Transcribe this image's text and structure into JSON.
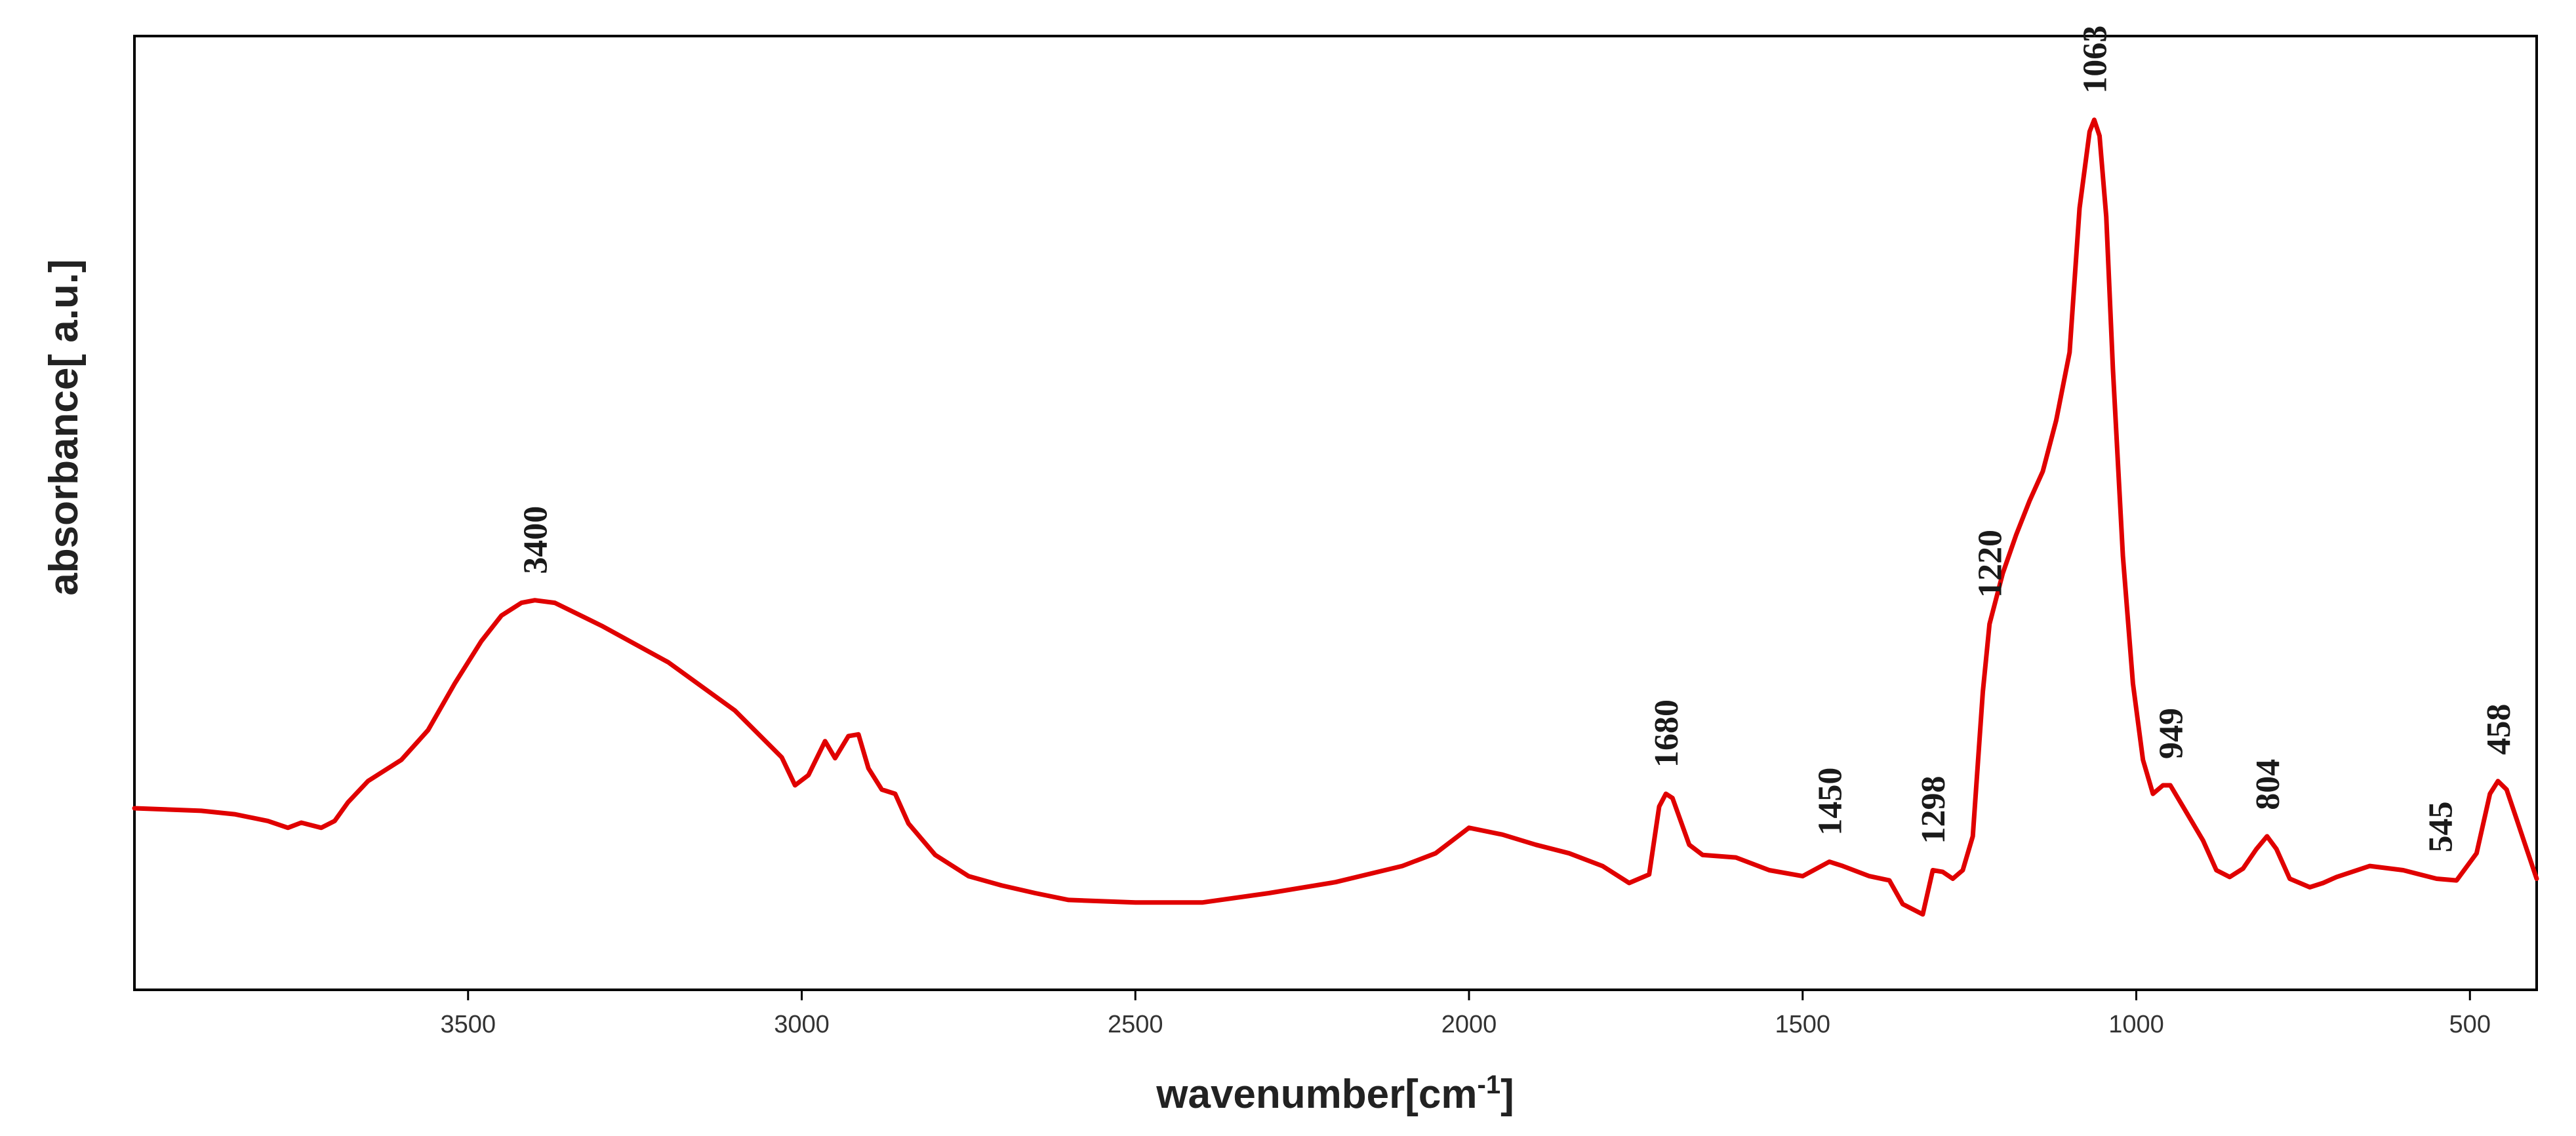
{
  "chart_data": {
    "type": "line",
    "xlabel": "wavenumber[cm",
    "xlabel_sup": "-1",
    "xlabel_end": "]",
    "ylabel": "absorbance[ a.u.]",
    "xlim": [
      4000,
      400
    ],
    "ylim": [
      0,
      1
    ],
    "x_reversed": true,
    "x_ticks": [
      3500,
      3000,
      2500,
      2000,
      1500,
      1000,
      500
    ],
    "y_ticks_shown": false,
    "grid": false,
    "line_color": "#e00000",
    "series": [
      {
        "points": [
          [
            4000,
            0.183
          ],
          [
            3900,
            0.18
          ],
          [
            3850,
            0.176
          ],
          [
            3800,
            0.168
          ],
          [
            3770,
            0.16
          ],
          [
            3750,
            0.166
          ],
          [
            3720,
            0.16
          ],
          [
            3700,
            0.168
          ],
          [
            3680,
            0.19
          ],
          [
            3650,
            0.215
          ],
          [
            3600,
            0.24
          ],
          [
            3560,
            0.275
          ],
          [
            3520,
            0.33
          ],
          [
            3480,
            0.38
          ],
          [
            3450,
            0.41
          ],
          [
            3420,
            0.425
          ],
          [
            3400,
            0.428
          ],
          [
            3370,
            0.425
          ],
          [
            3300,
            0.398
          ],
          [
            3200,
            0.355
          ],
          [
            3100,
            0.298
          ],
          [
            3030,
            0.243
          ],
          [
            3010,
            0.21
          ],
          [
            2990,
            0.222
          ],
          [
            2965,
            0.262
          ],
          [
            2950,
            0.242
          ],
          [
            2930,
            0.268
          ],
          [
            2915,
            0.27
          ],
          [
            2900,
            0.23
          ],
          [
            2880,
            0.205
          ],
          [
            2860,
            0.2
          ],
          [
            2840,
            0.165
          ],
          [
            2800,
            0.128
          ],
          [
            2750,
            0.103
          ],
          [
            2700,
            0.092
          ],
          [
            2650,
            0.083
          ],
          [
            2600,
            0.075
          ],
          [
            2500,
            0.072
          ],
          [
            2400,
            0.072
          ],
          [
            2300,
            0.083
          ],
          [
            2200,
            0.096
          ],
          [
            2100,
            0.115
          ],
          [
            2050,
            0.13
          ],
          [
            2000,
            0.16
          ],
          [
            1950,
            0.152
          ],
          [
            1900,
            0.14
          ],
          [
            1850,
            0.13
          ],
          [
            1800,
            0.115
          ],
          [
            1760,
            0.095
          ],
          [
            1730,
            0.105
          ],
          [
            1715,
            0.185
          ],
          [
            1705,
            0.2
          ],
          [
            1695,
            0.195
          ],
          [
            1670,
            0.14
          ],
          [
            1650,
            0.128
          ],
          [
            1600,
            0.125
          ],
          [
            1550,
            0.11
          ],
          [
            1500,
            0.103
          ],
          [
            1460,
            0.12
          ],
          [
            1440,
            0.115
          ],
          [
            1400,
            0.103
          ],
          [
            1370,
            0.098
          ],
          [
            1350,
            0.07
          ],
          [
            1320,
            0.058
          ],
          [
            1305,
            0.11
          ],
          [
            1290,
            0.108
          ],
          [
            1275,
            0.1
          ],
          [
            1260,
            0.11
          ],
          [
            1245,
            0.15
          ],
          [
            1230,
            0.32
          ],
          [
            1220,
            0.4
          ],
          [
            1200,
            0.46
          ],
          [
            1180,
            0.505
          ],
          [
            1160,
            0.545
          ],
          [
            1140,
            0.58
          ],
          [
            1120,
            0.64
          ],
          [
            1100,
            0.72
          ],
          [
            1085,
            0.89
          ],
          [
            1070,
            0.98
          ],
          [
            1063,
            0.994
          ],
          [
            1055,
            0.975
          ],
          [
            1045,
            0.88
          ],
          [
            1035,
            0.7
          ],
          [
            1020,
            0.48
          ],
          [
            1005,
            0.33
          ],
          [
            990,
            0.24
          ],
          [
            975,
            0.2
          ],
          [
            960,
            0.21
          ],
          [
            949,
            0.21
          ],
          [
            930,
            0.185
          ],
          [
            900,
            0.145
          ],
          [
            880,
            0.11
          ],
          [
            860,
            0.102
          ],
          [
            840,
            0.112
          ],
          [
            820,
            0.135
          ],
          [
            804,
            0.15
          ],
          [
            790,
            0.135
          ],
          [
            770,
            0.1
          ],
          [
            740,
            0.09
          ],
          [
            720,
            0.095
          ],
          [
            700,
            0.102
          ],
          [
            650,
            0.115
          ],
          [
            600,
            0.11
          ],
          [
            550,
            0.1
          ],
          [
            520,
            0.098
          ],
          [
            490,
            0.13
          ],
          [
            470,
            0.2
          ],
          [
            458,
            0.215
          ],
          [
            445,
            0.205
          ],
          [
            430,
            0.17
          ],
          [
            415,
            0.135
          ],
          [
            400,
            0.1
          ]
        ]
      }
    ],
    "annotations": [
      {
        "text": "3400",
        "x": 3400,
        "y": 0.428
      },
      {
        "text": "1680",
        "x": 1705,
        "y": 0.2
      },
      {
        "text": "1450",
        "x": 1460,
        "y": 0.12
      },
      {
        "text": "1298",
        "x": 1305,
        "y": 0.11
      },
      {
        "text": "1220",
        "x": 1220,
        "y": 0.4
      },
      {
        "text": "1063",
        "x": 1063,
        "y": 0.994
      },
      {
        "text": "949",
        "x": 949,
        "y": 0.21
      },
      {
        "text": "804",
        "x": 804,
        "y": 0.15
      },
      {
        "text": "545",
        "x": 545,
        "y": 0.1
      },
      {
        "text": "458",
        "x": 458,
        "y": 0.215
      }
    ]
  }
}
